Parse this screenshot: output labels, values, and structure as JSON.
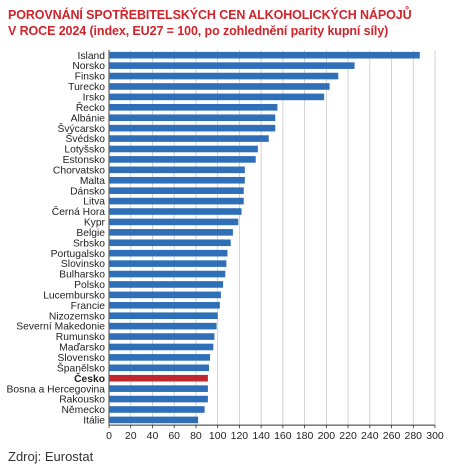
{
  "header": {
    "title_line1": "POROVNÁNÍ SPOTŘEBITELSKÝCH CEN ALKOHOLICKÝCH NÁPOJŮ",
    "title_line2": "V ROCE 2024 (index, EU27 = 100, po zohlednění parity kupní síly)"
  },
  "footer": {
    "source": "Zdroj: Eurostat"
  },
  "colors": {
    "bar": "#2f6fb7",
    "highlight": "#c0282d",
    "grid": "#c8c8c8",
    "title": "#d0232a"
  },
  "chart_data": {
    "type": "bar",
    "orientation": "horizontal",
    "categories": [
      "Island",
      "Norsko",
      "Finsko",
      "Turecko",
      "Irsko",
      "Řecko",
      "Albánie",
      "Švýcarsko",
      "Švédsko",
      "Lotyšsko",
      "Estonsko",
      "Chorvatsko",
      "Malta",
      "Dánsko",
      "Litva",
      "Černá Hora",
      "Kypr",
      "Belgie",
      "Srbsko",
      "Portugalsko",
      "Slovinsko",
      "Bulharsko",
      "Polsko",
      "Lucembursko",
      "Francie",
      "Nizozemsko",
      "Severní Makedonie",
      "Rumunsko",
      "Maďarsko",
      "Slovensko",
      "Španělsko",
      "Česko",
      "Bosna a Hercegovina",
      "Rakousko",
      "Německo",
      "Itálie"
    ],
    "values": [
      286,
      226,
      211,
      203,
      198,
      155,
      153,
      153,
      147,
      137,
      135,
      125,
      125,
      124,
      124,
      122,
      119,
      114,
      112,
      109,
      108,
      107,
      105,
      103,
      102,
      100,
      99,
      97,
      96,
      93,
      92,
      91,
      91,
      91,
      88,
      82
    ],
    "highlight": "Česko",
    "xlim": [
      0,
      300
    ],
    "xticks": [
      0,
      20,
      40,
      60,
      80,
      100,
      120,
      140,
      160,
      180,
      200,
      220,
      240,
      260,
      280,
      300
    ],
    "grid": true
  }
}
